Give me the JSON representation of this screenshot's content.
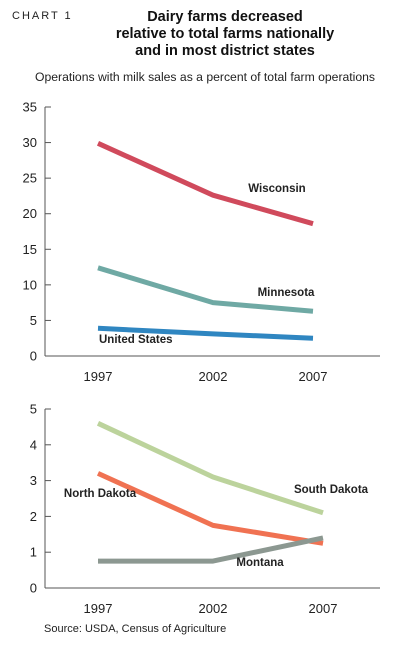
{
  "header": {
    "chart_label": "CHART 1",
    "title_lines": [
      "Dairy farms decreased",
      "relative to total farms nationally",
      "and in most district states"
    ],
    "subtitle": "Operations with milk sales as a percent of total farm operations"
  },
  "footer": {
    "source": "Source: USDA, Census of Agriculture"
  },
  "chart_data": [
    {
      "type": "line",
      "title": "",
      "xlabel": "",
      "ylabel": "",
      "x": [
        "1997",
        "2002",
        "2007"
      ],
      "ylim": [
        0,
        35
      ],
      "yticks": [
        0,
        5,
        10,
        15,
        20,
        25,
        30,
        35
      ],
      "grid": false,
      "series": [
        {
          "name": "Wisconsin",
          "values": [
            29.9,
            22.6,
            18.6
          ],
          "color": "#d04a5c"
        },
        {
          "name": "Minnesota",
          "values": [
            12.4,
            7.5,
            6.3
          ],
          "color": "#6fa9a4"
        },
        {
          "name": "United States",
          "values": [
            3.9,
            3.1,
            2.5
          ],
          "color": "#2f86c1"
        }
      ]
    },
    {
      "type": "line",
      "title": "",
      "xlabel": "",
      "ylabel": "",
      "x": [
        "1997",
        "2002",
        "2007"
      ],
      "ylim": [
        0,
        5
      ],
      "yticks": [
        0,
        1,
        2,
        3,
        4,
        5
      ],
      "grid": false,
      "series": [
        {
          "name": "South Dakota",
          "values": [
            4.6,
            3.1,
            2.1
          ],
          "color": "#bcd39c"
        },
        {
          "name": "North Dakota",
          "values": [
            3.2,
            1.75,
            1.25
          ],
          "color": "#f07252"
        },
        {
          "name": "Montana",
          "values": [
            0.75,
            0.75,
            1.4
          ],
          "color": "#8c9891"
        }
      ]
    }
  ]
}
